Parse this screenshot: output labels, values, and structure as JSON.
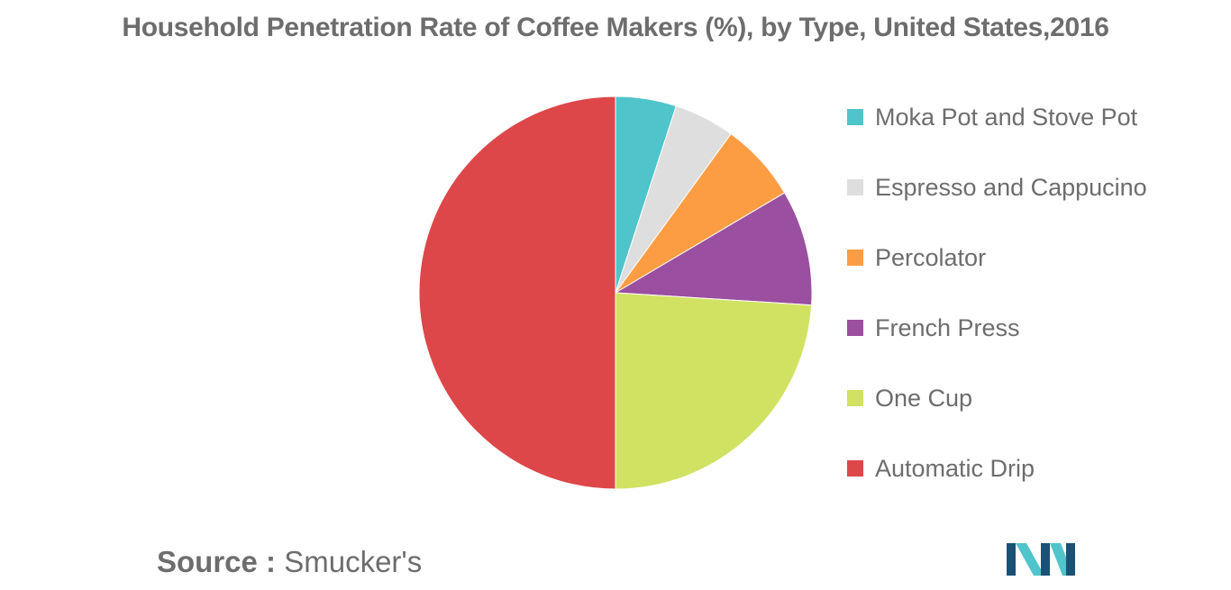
{
  "chart_data": {
    "type": "pie",
    "title": "Household Penetration Rate of Coffee Makers (%), by Type, United States,2016",
    "categories": [
      "Moka Pot and Stove Pot",
      "Espresso and Cappucino",
      "Percolator",
      "French Press",
      "One Cup",
      "Automatic Drip"
    ],
    "values": [
      5,
      5,
      6.5,
      9.5,
      24,
      50
    ],
    "colors": [
      "#4fc4ca",
      "#dedede",
      "#fc9d44",
      "#9b4fa0",
      "#d1e262",
      "#dd4749"
    ],
    "legend_position": "right"
  },
  "source": {
    "label": "Source :",
    "value": "Smucker's"
  },
  "logo": {
    "icon": "mordor-intelligence-logo",
    "colors": [
      "#1a5276",
      "#4fc4ca"
    ]
  }
}
